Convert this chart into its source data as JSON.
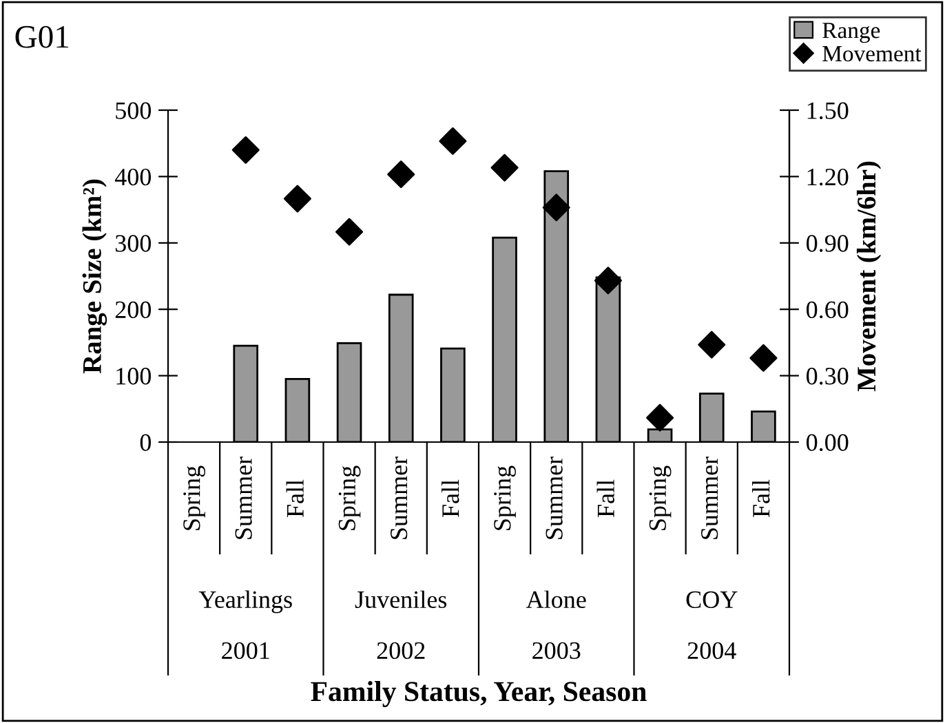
{
  "chart_data": {
    "type": "bar",
    "title": "G01",
    "xlabel": "Family Status, Year, Season",
    "ylabel": "Range Size (km²)",
    "y2label": "Movement (km/6hr)",
    "categories": [
      "Spring",
      "Summer",
      "Fall",
      "Spring",
      "Summer",
      "Fall",
      "Spring",
      "Summer",
      "Fall",
      "Spring",
      "Summer",
      "Fall"
    ],
    "series": [
      {
        "name": "Range",
        "color": "#999999",
        "values": [
          null,
          145,
          95,
          149,
          222,
          141,
          308,
          408,
          248,
          19,
          73,
          46
        ]
      },
      {
        "name": "Movement",
        "type": "scatter",
        "axis": "y2",
        "color": "#000000",
        "marker": "diamond",
        "values": [
          null,
          1.32,
          1.1,
          0.95,
          1.21,
          1.36,
          1.24,
          1.06,
          0.73,
          0.11,
          0.44,
          0.38
        ]
      }
    ],
    "ylim": [
      0,
      500
    ],
    "yticks": [
      0,
      100,
      200,
      300,
      400,
      500
    ],
    "y2lim": [
      0,
      1.5
    ],
    "y2ticks": [
      {
        "value": 0,
        "label": "0.00"
      },
      {
        "value": 0.3,
        "label": "0.30"
      },
      {
        "value": 0.6,
        "label": "0.60"
      },
      {
        "value": 0.9,
        "label": "0.90"
      },
      {
        "value": 1.2,
        "label": "1.20"
      },
      {
        "value": 1.5,
        "label": "1.50"
      }
    ],
    "annotations": [
      "Yearlings",
      "Juveniles",
      "Alone",
      "COY",
      "2001",
      "2002",
      "2003",
      "2004"
    ],
    "legend": "top right",
    "grid": false
  }
}
